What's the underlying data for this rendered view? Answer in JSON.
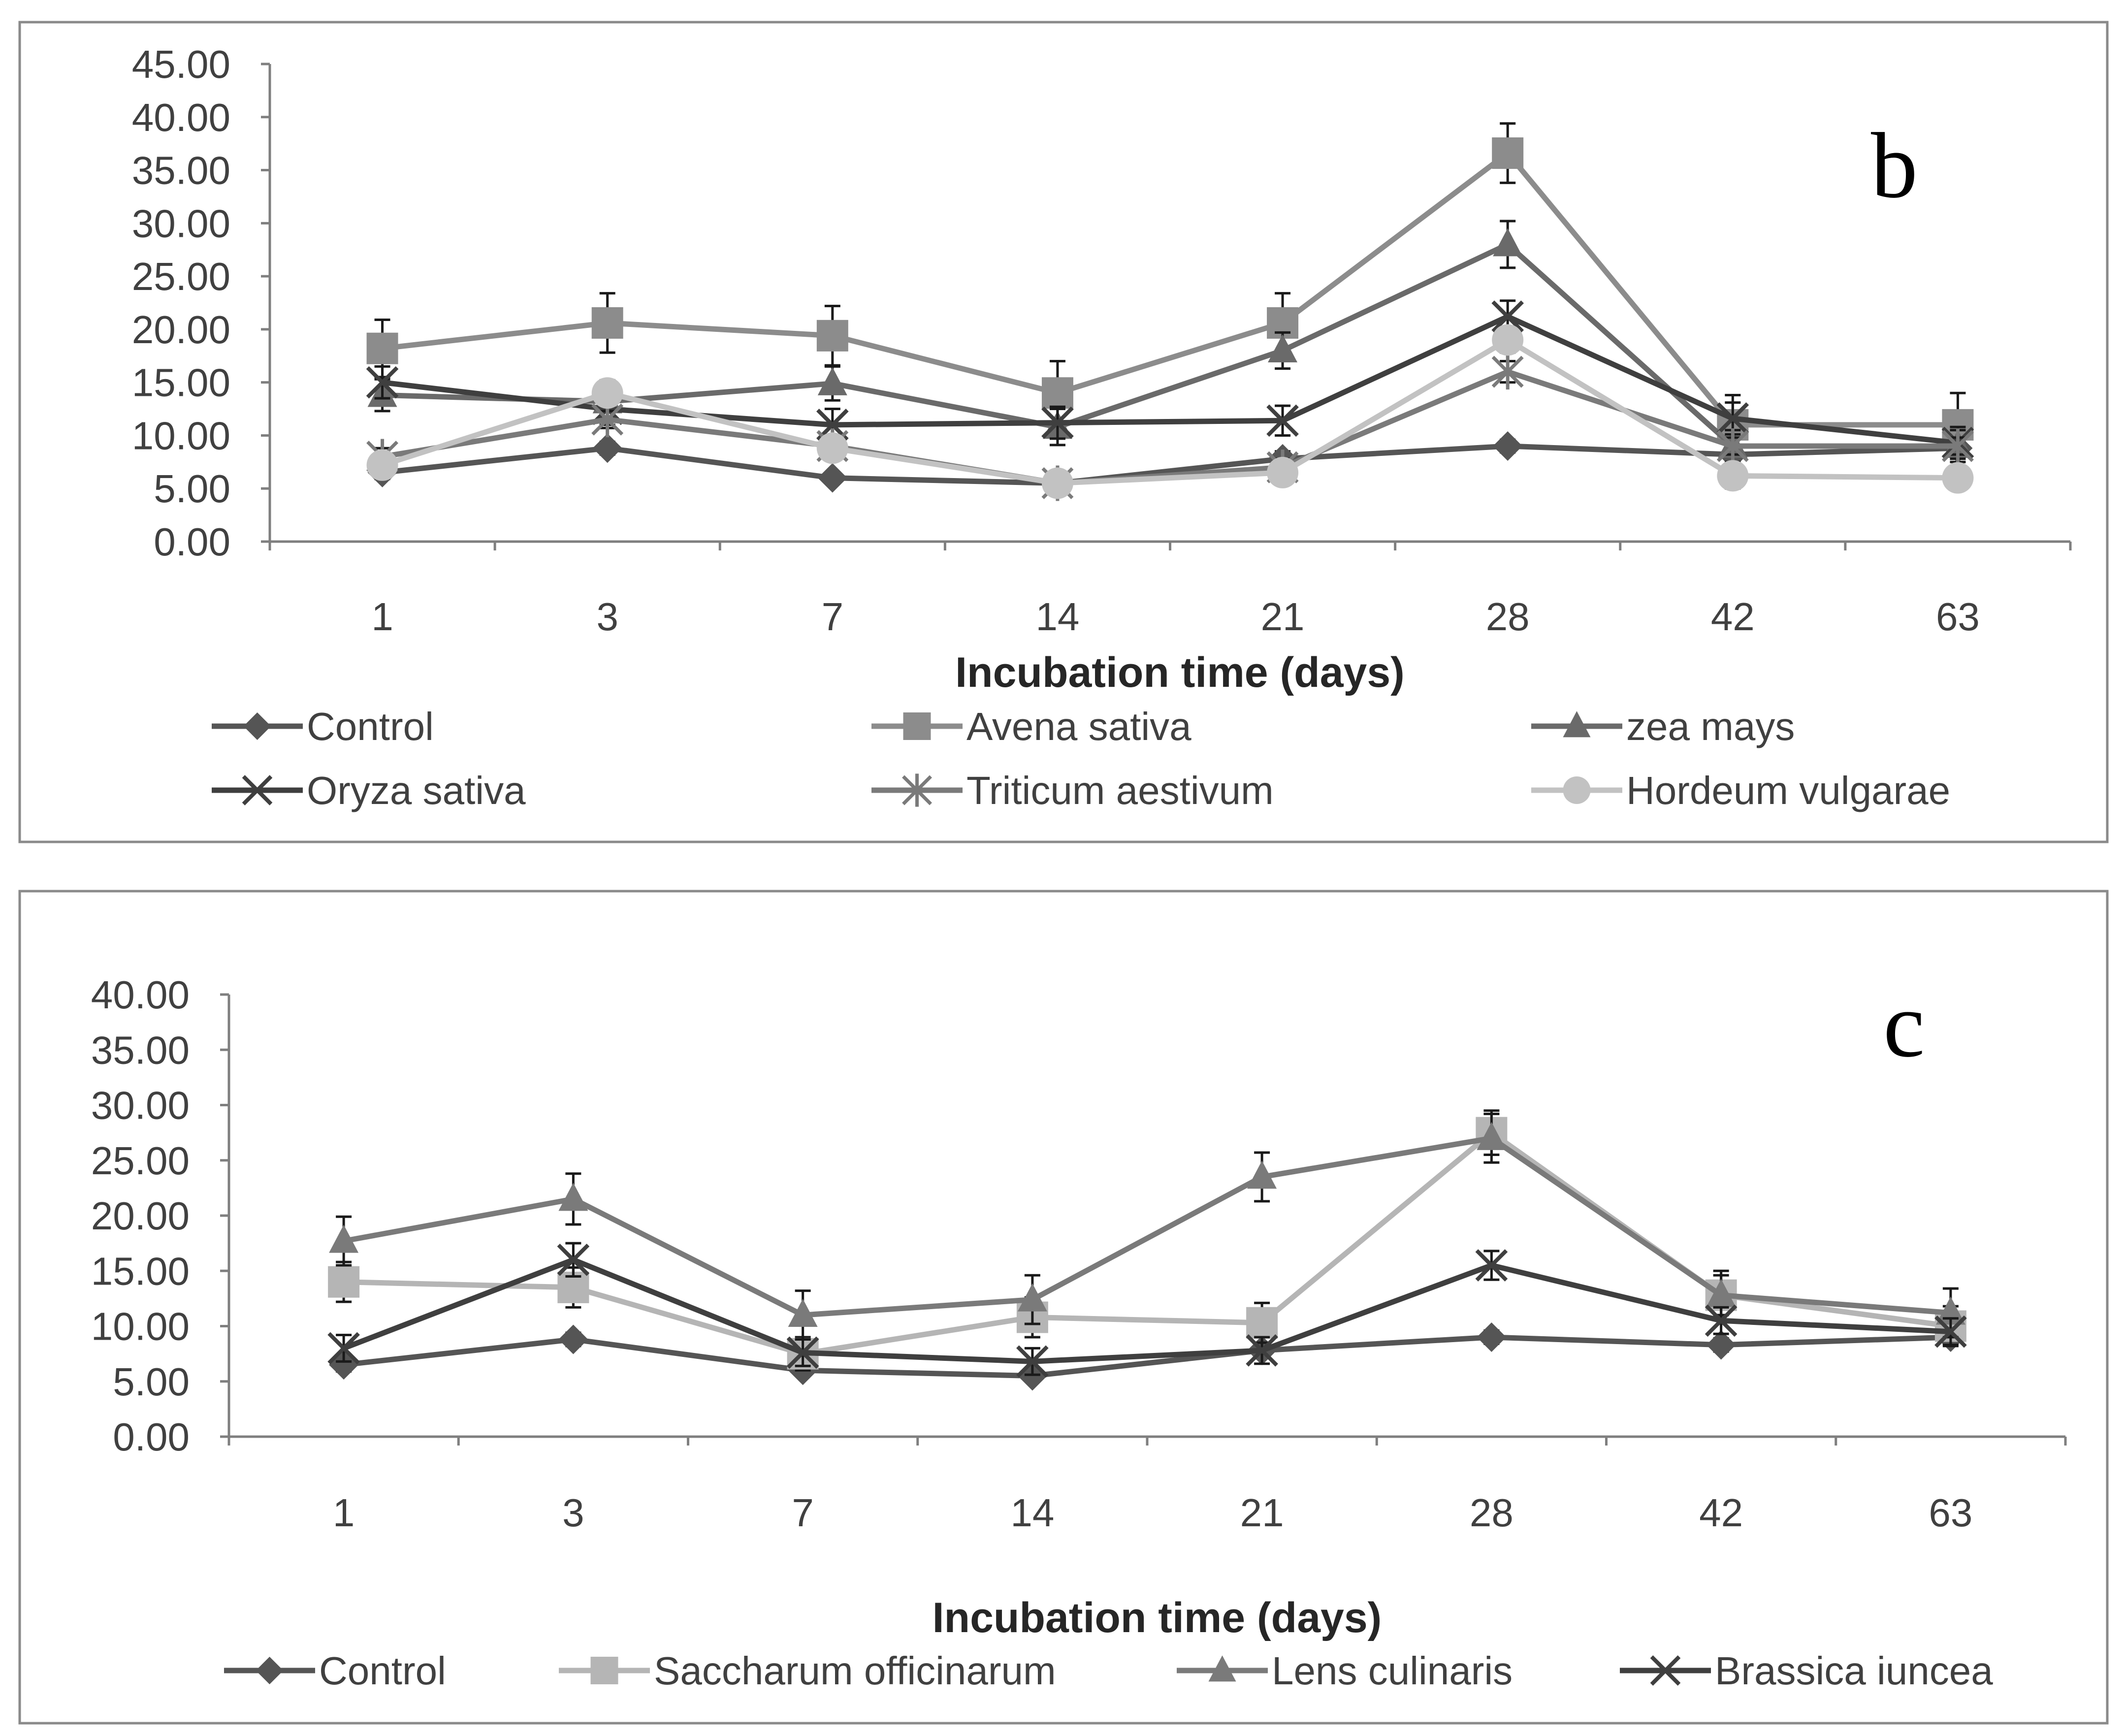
{
  "chart_data": [
    {
      "type": "line",
      "panel_label": "b",
      "xlabel": "Incubation time (days)",
      "ylabel": "",
      "categories": [
        "1",
        "3",
        "7",
        "14",
        "21",
        "28",
        "42",
        "63"
      ],
      "ylim": [
        0,
        45
      ],
      "yticks": [
        "0.00",
        "5.00",
        "10.00",
        "15.00",
        "20.00",
        "25.00",
        "30.00",
        "35.00",
        "40.00",
        "45.00"
      ],
      "series": [
        {
          "name": "Control",
          "marker": "diamond",
          "color": "#555555",
          "values": [
            6.5,
            8.8,
            6.0,
            5.5,
            7.8,
            9.0,
            8.2,
            8.8
          ],
          "errors": [
            0.6,
            0.6,
            0.5,
            0.5,
            0.7,
            0.6,
            0.6,
            0.6
          ]
        },
        {
          "name": "Avena sativa",
          "marker": "square",
          "color": "#8c8c8c",
          "values": [
            18.2,
            20.6,
            19.4,
            14.0,
            20.6,
            36.6,
            11.0,
            11.0
          ],
          "errors": [
            2.7,
            2.8,
            2.8,
            3.0,
            2.8,
            2.8,
            2.8,
            3.0
          ]
        },
        {
          "name": "zea mays",
          "marker": "triangle",
          "color": "#6a6a6a",
          "values": [
            13.8,
            13.2,
            14.9,
            10.8,
            18.0,
            28.0,
            9.0,
            9.0
          ],
          "errors": [
            1.5,
            1.6,
            1.6,
            1.7,
            1.7,
            2.2,
            1.5,
            1.5
          ]
        },
        {
          "name": "Oryza sativa",
          "marker": "x",
          "color": "#3f3f3f",
          "values": [
            15.0,
            12.5,
            11.0,
            11.2,
            11.4,
            21.2,
            11.6,
            9.3
          ],
          "errors": [
            1.5,
            1.5,
            1.5,
            1.5,
            1.4,
            1.5,
            1.5,
            1.5
          ]
        },
        {
          "name": "Triticum aestivum",
          "marker": "star",
          "color": "#7a7a7a",
          "values": [
            8.0,
            11.5,
            9.0,
            5.5,
            7.0,
            16.0,
            9.0,
            9.0
          ],
          "errors": [
            0.8,
            0.8,
            0.8,
            0.7,
            0.8,
            1.0,
            0.8,
            0.8
          ]
        },
        {
          "name": "Hordeum vulgarae",
          "marker": "circle",
          "color": "#c2c2c2",
          "values": [
            7.2,
            14.0,
            8.8,
            5.5,
            6.5,
            19.0,
            6.2,
            6.0
          ],
          "errors": [
            0.8,
            1.2,
            0.8,
            0.8,
            0.8,
            1.2,
            1.2,
            1.0
          ]
        }
      ]
    },
    {
      "type": "line",
      "panel_label": "c",
      "xlabel": "Incubation time (days)",
      "ylabel": "",
      "categories": [
        "1",
        "3",
        "7",
        "14",
        "21",
        "28",
        "42",
        "63"
      ],
      "ylim": [
        0,
        40
      ],
      "yticks": [
        "0.00",
        "5.00",
        "10.00",
        "15.00",
        "20.00",
        "25.00",
        "30.00",
        "35.00",
        "40.00"
      ],
      "series": [
        {
          "name": "Control",
          "marker": "diamond",
          "color": "#555555",
          "values": [
            6.5,
            8.8,
            6.0,
            5.5,
            7.8,
            9.0,
            8.3,
            9.0
          ],
          "errors": [
            0.6,
            0.6,
            0.5,
            0.5,
            0.7,
            0.6,
            0.6,
            0.6
          ]
        },
        {
          "name": "Saccharum officinarum",
          "marker": "square",
          "color": "#b5b5b5",
          "values": [
            14.0,
            13.5,
            7.5,
            10.8,
            10.3,
            27.5,
            12.8,
            10.0
          ],
          "errors": [
            1.8,
            1.8,
            1.5,
            1.8,
            1.8,
            2.0,
            1.8,
            1.8
          ]
        },
        {
          "name": "Lens culinaris",
          "marker": "triangle",
          "color": "#7a7a7a",
          "values": [
            17.7,
            21.5,
            11.0,
            12.4,
            23.5,
            27.0,
            12.8,
            11.2
          ],
          "errors": [
            2.2,
            2.3,
            2.2,
            2.2,
            2.2,
            2.2,
            2.2,
            2.2
          ]
        },
        {
          "name": "Brassica iuncea",
          "marker": "x",
          "color": "#3f3f3f",
          "values": [
            8.0,
            16.0,
            7.6,
            6.8,
            7.8,
            15.5,
            10.5,
            9.5
          ],
          "errors": [
            1.2,
            1.5,
            1.2,
            1.2,
            1.2,
            1.3,
            1.2,
            1.2
          ]
        }
      ]
    }
  ]
}
